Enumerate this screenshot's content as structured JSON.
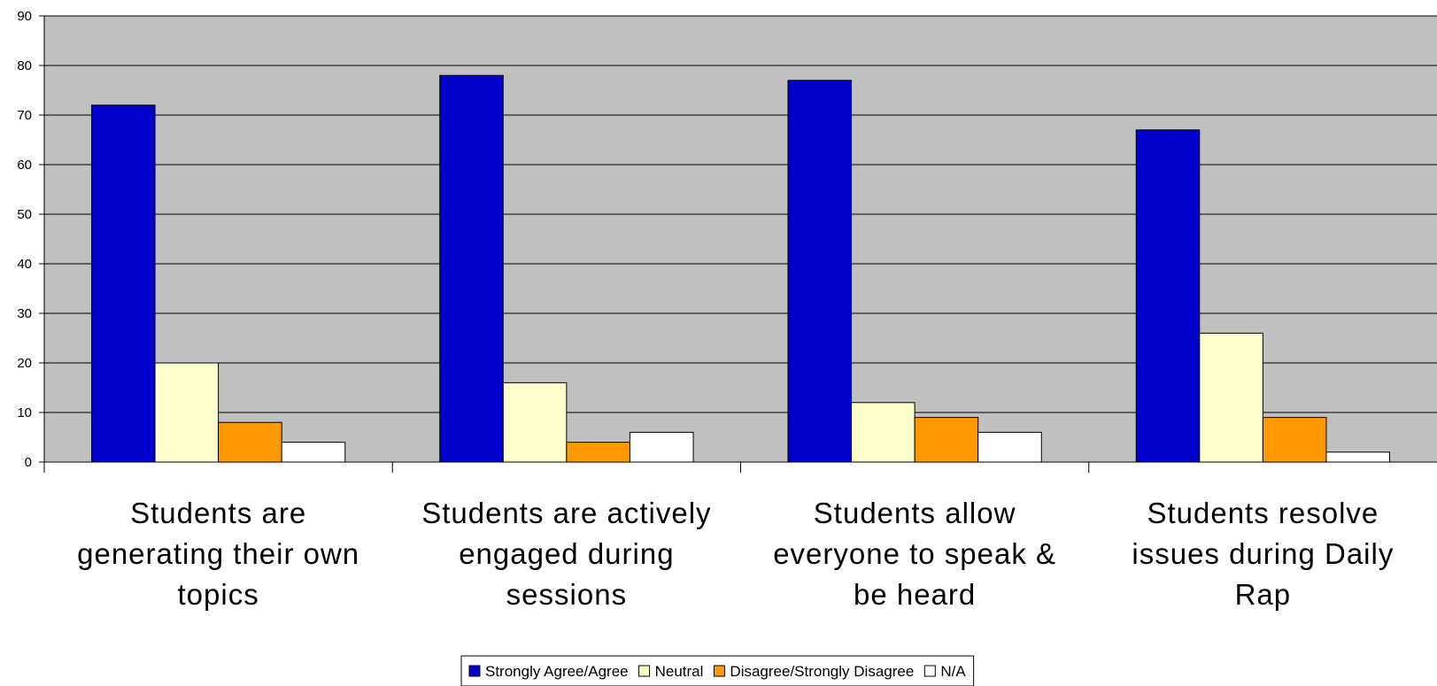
{
  "chart_data": {
    "type": "bar",
    "categories": [
      [
        "Students are",
        "generating their own",
        "topics"
      ],
      [
        "Students are actively",
        "engaged during",
        "sessions"
      ],
      [
        "Students allow",
        "everyone to speak &",
        "be heard"
      ],
      [
        "Students resolve",
        "issues during Daily",
        "Rap"
      ]
    ],
    "series": [
      {
        "name": "Strongly Agree/Agree",
        "color": "#0000cc",
        "values": [
          72,
          78,
          77,
          67
        ]
      },
      {
        "name": "Neutral",
        "color": "#ffffcc",
        "values": [
          20,
          16,
          12,
          26
        ]
      },
      {
        "name": "Disagree/Strongly Disagree",
        "color": "#ff9900",
        "values": [
          8,
          4,
          9,
          9
        ]
      },
      {
        "name": "N/A",
        "color": "#ffffff",
        "values": [
          4,
          6,
          6,
          2
        ]
      }
    ],
    "ylim": [
      0,
      90
    ],
    "yticks": [
      0,
      10,
      20,
      30,
      40,
      50,
      60,
      70,
      80,
      90
    ],
    "plot_background": "#c0c0c0",
    "grid": true,
    "legend_position": "bottom"
  }
}
